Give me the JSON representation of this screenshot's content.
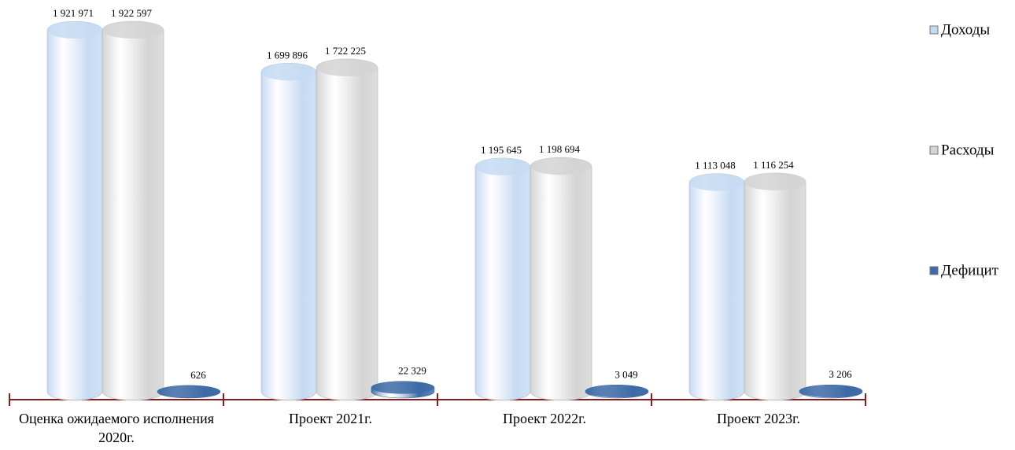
{
  "chart_data": {
    "type": "bar",
    "categories": [
      "Оценка ожидаемого исполнения 2020г.",
      "Проект 2021г.",
      "Проект 2022г.",
      "Проект 2023г."
    ],
    "series": [
      {
        "name": "Доходы",
        "color": "#c6daf2",
        "values": [
          1921971,
          1699896,
          1195645,
          1113048
        ],
        "value_labels": [
          "1 921 971",
          "1 699 896",
          "1 195 645",
          "1 113 048"
        ]
      },
      {
        "name": "Расходы",
        "color": "#d4d4d4",
        "values": [
          1922597,
          1722225,
          1198694,
          1116254
        ],
        "value_labels": [
          "1 922 597",
          "1 722 225",
          "1 198 694",
          "1 116 254"
        ]
      },
      {
        "name": "Дефицит",
        "color": "#3d6aa6",
        "values": [
          626,
          22329,
          3049,
          3206
        ],
        "value_labels": [
          "626",
          "22 329",
          "3 049",
          "3 206"
        ]
      }
    ],
    "legend": "right"
  }
}
